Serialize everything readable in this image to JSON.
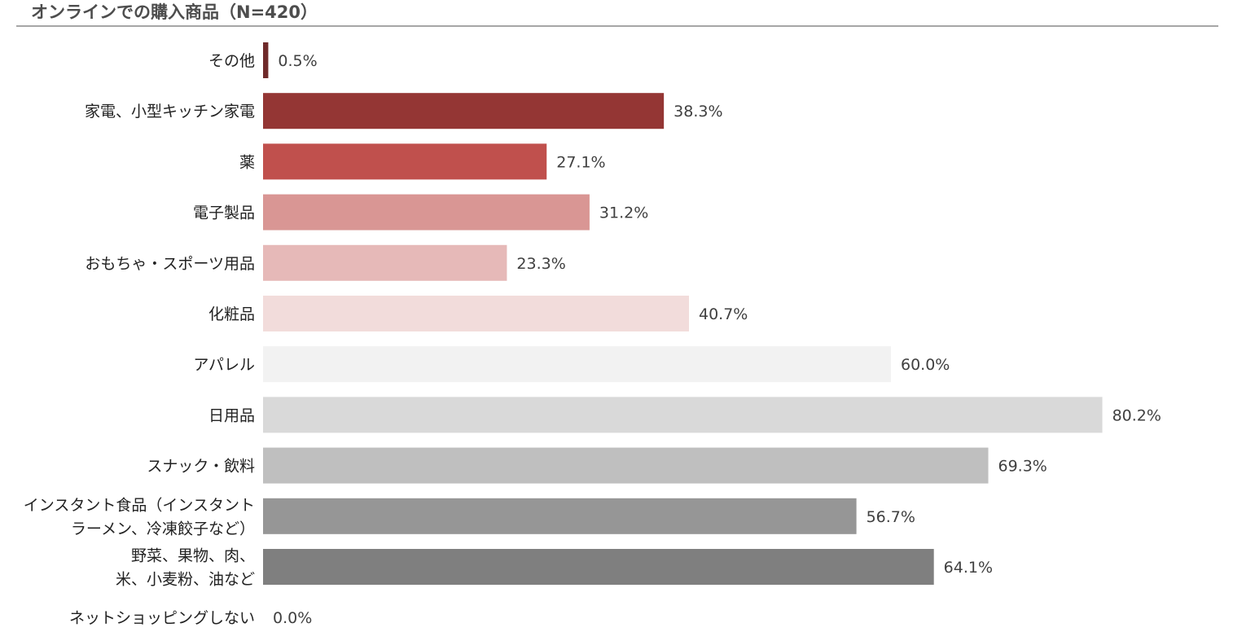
{
  "title": "オンラインでの購入商品（N=420）",
  "chart_data": {
    "type": "bar",
    "orientation": "horizontal",
    "title": "オンラインでの購入商品（N=420）",
    "unit": "%",
    "xlim": [
      0,
      100
    ],
    "grid": false,
    "categories": [
      "その他",
      "家電、小型キッチン家電",
      "薬",
      "電子製品",
      "おもちゃ・スポーツ用品",
      "化粧品",
      "アパレル",
      "日用品",
      "スナック・飲料",
      "インスタント食品（インスタント\nラーメン、冷凍餃子など）",
      "野菜、果物、肉、\n米、小麦粉、油など",
      "ネットショッピングしない"
    ],
    "values": [
      0.5,
      38.3,
      27.1,
      31.2,
      23.3,
      40.7,
      60.0,
      80.2,
      69.3,
      56.7,
      64.1,
      0.0
    ],
    "value_labels": [
      "0.5%",
      "38.3%",
      "27.1%",
      "31.2%",
      "23.3%",
      "40.7%",
      "60.0%",
      "80.2%",
      "69.3%",
      "56.7%",
      "64.1%",
      "0.0%"
    ],
    "colors": [
      "#6f2a2a",
      "#943634",
      "#c0504d",
      "#d99694",
      "#e6b9b8",
      "#f2dcdb",
      "#f2f2f2",
      "#d9d9d9",
      "#bfbfbf",
      "#969696",
      "#7f7f7f",
      "#7f7f7f"
    ]
  }
}
